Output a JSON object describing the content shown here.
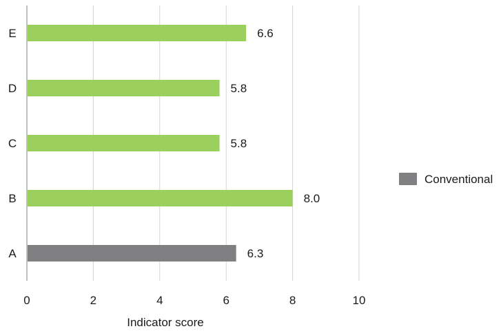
{
  "chart_data": {
    "type": "bar",
    "orientation": "horizontal",
    "categories": [
      "A",
      "B",
      "C",
      "D",
      "E"
    ],
    "values": [
      6.3,
      8.0,
      5.8,
      5.8,
      6.6
    ],
    "value_labels": [
      "6.3",
      "8.0",
      "5.8",
      "5.8",
      "6.6"
    ],
    "bar_colors": [
      "#808083",
      "#9bd05f",
      "#9bd05f",
      "#9bd05f",
      "#9bd05f"
    ],
    "xlim": [
      0,
      10
    ],
    "x_ticks": [
      0,
      2,
      4,
      6,
      8,
      10
    ],
    "xlabel": "Indicator score",
    "ylabel": "",
    "grid": "vertical",
    "legend": {
      "placement": "right",
      "entries": [
        {
          "name": "Conventional",
          "color": "#808083"
        }
      ]
    }
  }
}
